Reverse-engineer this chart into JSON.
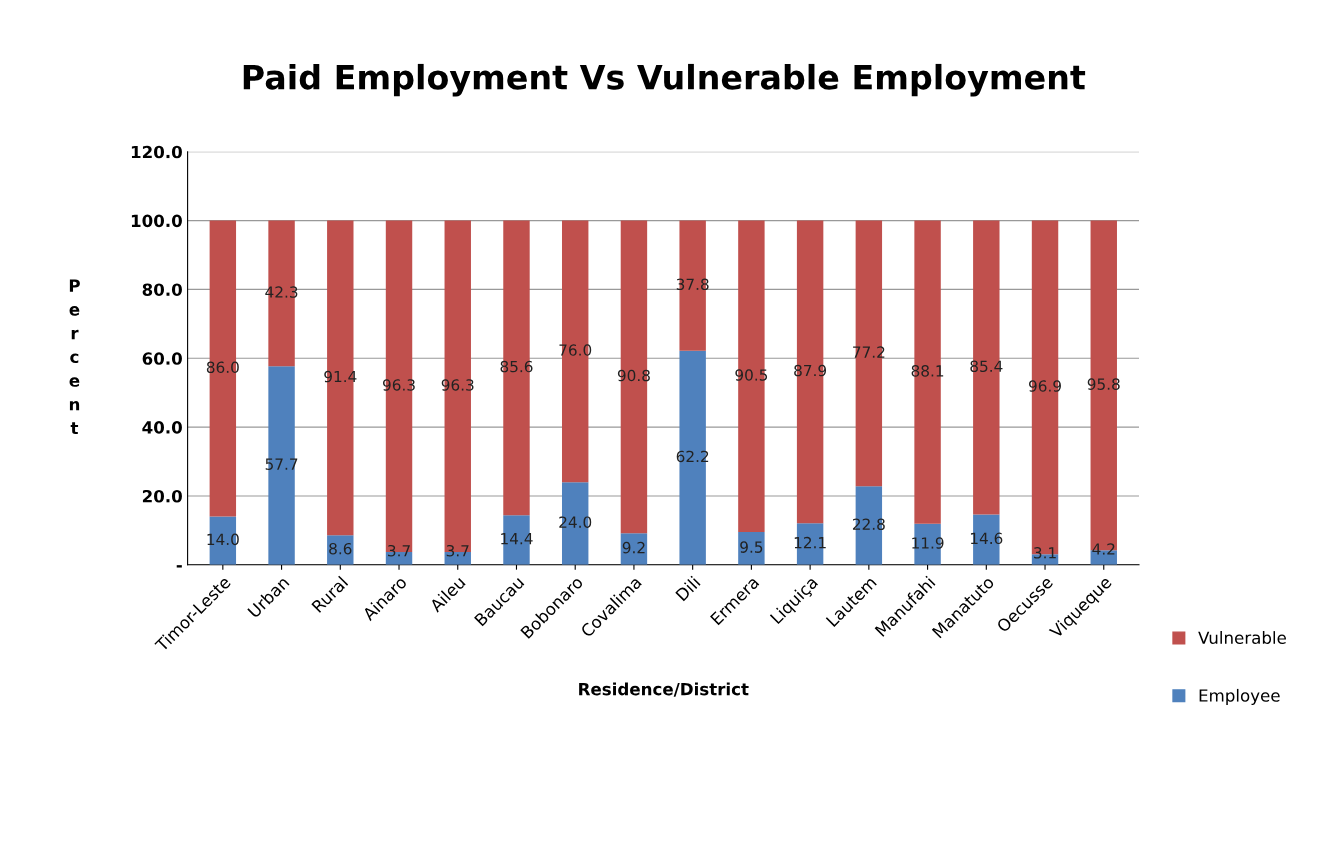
{
  "chart_data": {
    "type": "bar",
    "title": "Paid Employment Vs Vulnerable Employment",
    "xlabel": "Residence/District",
    "ylabel": "Percent",
    "categories": [
      "Timor-Leste",
      "Urban",
      "Rural",
      "Ainaro",
      "Aileu",
      "Baucau",
      "Bobonaro",
      "Covalima",
      "Dili",
      "Ermera",
      "Liquiça",
      "Lautem",
      "Manufahi",
      "Manatuto",
      "Oecusse",
      "Viqueque"
    ],
    "series": [
      {
        "name": "Employee",
        "color": "#4f81bd",
        "values": [
          14.0,
          57.7,
          8.6,
          3.7,
          3.7,
          14.4,
          24.0,
          9.2,
          62.2,
          9.5,
          12.1,
          22.8,
          11.9,
          14.6,
          3.1,
          4.2
        ],
        "value_labels": [
          "14.0",
          "57.7",
          "8.6",
          "3.7",
          "3.7",
          "14.4",
          "24.0",
          "9.2",
          "62.2",
          "9.5",
          "12.1",
          "22.8",
          "11.9",
          "14.6",
          "3.1",
          "4.2"
        ]
      },
      {
        "name": "Vulnerable",
        "color": "#c0504d",
        "values": [
          86.0,
          42.3,
          91.4,
          96.3,
          96.3,
          85.6,
          76.0,
          90.8,
          37.8,
          90.5,
          87.9,
          77.2,
          88.1,
          85.4,
          96.9,
          95.8
        ],
        "value_labels": [
          "86.0",
          "42.3",
          "91.4",
          "96.3",
          "96.3",
          "85.6",
          "76.0",
          "90.8",
          "37.8",
          "90.5",
          "87.9",
          "77.2",
          "88.1",
          "85.4",
          "96.9",
          "95.8"
        ]
      }
    ],
    "stacked": true,
    "ylim": [
      0,
      120
    ],
    "yticks": [
      {
        "value": 0,
        "label": "-"
      },
      {
        "value": 20,
        "label": "20.0"
      },
      {
        "value": 40,
        "label": "40.0"
      },
      {
        "value": 60,
        "label": "60.0"
      },
      {
        "value": 80,
        "label": "80.0"
      },
      {
        "value": 100,
        "label": "100.0"
      },
      {
        "value": 120,
        "label": "120.0"
      }
    ],
    "grid": "y",
    "legend": "right"
  }
}
